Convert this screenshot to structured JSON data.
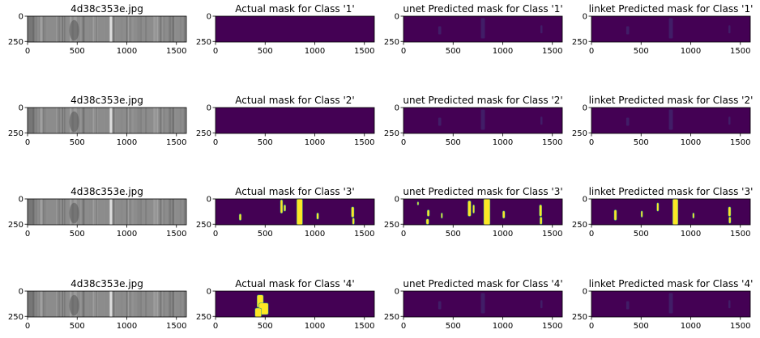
{
  "figure": {
    "rows": [
      {
        "panels": [
          {
            "title": "4d38c353e.jpg",
            "kind": "photo"
          },
          {
            "title": "Actual mask for Class '1'",
            "kind": "mask",
            "blobs": []
          },
          {
            "title": "unet Predicted mask for Class '1'",
            "kind": "mask",
            "blobs": "faint"
          },
          {
            "title": "linket Predicted mask for Class '1'",
            "kind": "mask",
            "blobs": "faint"
          }
        ]
      },
      {
        "panels": [
          {
            "title": "4d38c353e.jpg",
            "kind": "photo"
          },
          {
            "title": "Actual mask for Class '2'",
            "kind": "mask",
            "blobs": []
          },
          {
            "title": "unet Predicted mask for Class '2'",
            "kind": "mask",
            "blobs": "faint"
          },
          {
            "title": "linket Predicted mask for Class '2'",
            "kind": "mask",
            "blobs": "faint"
          }
        ]
      },
      {
        "panels": [
          {
            "title": "4d38c353e.jpg",
            "kind": "photo"
          },
          {
            "title": "Actual mask for Class '3'",
            "kind": "mask",
            "blobs": "class3_actual"
          },
          {
            "title": "unet Predicted mask for Class '3'",
            "kind": "mask",
            "blobs": "class3_unet"
          },
          {
            "title": "linket Predicted mask for Class '3'",
            "kind": "mask",
            "blobs": "class3_linket"
          }
        ]
      },
      {
        "panels": [
          {
            "title": "4d38c353e.jpg",
            "kind": "photo"
          },
          {
            "title": "Actual mask for Class '4'",
            "kind": "mask",
            "blobs": "class4_actual"
          },
          {
            "title": "unet Predicted mask for Class '4'",
            "kind": "mask",
            "blobs": "faint"
          },
          {
            "title": "linket Predicted mask for Class '4'",
            "kind": "mask",
            "blobs": "faint"
          }
        ]
      }
    ],
    "x_ticks": [
      0,
      500,
      1000,
      1500
    ],
    "y_ticks": [
      0,
      250
    ],
    "image_width": 1600,
    "image_height": 256,
    "colors": {
      "mask_background": "#440154",
      "mask_foreground": "#fde725",
      "mask_mid": "#21918c",
      "mask_faint": "#3b528b",
      "photo_base": "#8c8c8c"
    },
    "blob_sets": {
      "class3_actual": [
        {
          "x": 240,
          "y": 150,
          "w": 18,
          "h": 60
        },
        {
          "x": 655,
          "y": 10,
          "w": 20,
          "h": 130
        },
        {
          "x": 690,
          "y": 60,
          "w": 16,
          "h": 60
        },
        {
          "x": 820,
          "y": 0,
          "w": 55,
          "h": 256
        },
        {
          "x": 1020,
          "y": 140,
          "w": 18,
          "h": 60
        },
        {
          "x": 1370,
          "y": 80,
          "w": 24,
          "h": 100
        },
        {
          "x": 1380,
          "y": 190,
          "w": 18,
          "h": 60
        }
      ],
      "class3_unet": [
        {
          "x": 140,
          "y": 30,
          "w": 12,
          "h": 30
        },
        {
          "x": 240,
          "y": 110,
          "w": 20,
          "h": 60
        },
        {
          "x": 230,
          "y": 200,
          "w": 24,
          "h": 50
        },
        {
          "x": 380,
          "y": 140,
          "w": 12,
          "h": 50
        },
        {
          "x": 650,
          "y": 20,
          "w": 28,
          "h": 150
        },
        {
          "x": 700,
          "y": 60,
          "w": 14,
          "h": 80
        },
        {
          "x": 810,
          "y": 0,
          "w": 60,
          "h": 256
        },
        {
          "x": 1000,
          "y": 120,
          "w": 20,
          "h": 70
        },
        {
          "x": 1370,
          "y": 60,
          "w": 22,
          "h": 110
        },
        {
          "x": 1375,
          "y": 180,
          "w": 20,
          "h": 70
        }
      ],
      "class3_linket": [
        {
          "x": 230,
          "y": 110,
          "w": 22,
          "h": 100
        },
        {
          "x": 500,
          "y": 120,
          "w": 14,
          "h": 60
        },
        {
          "x": 660,
          "y": 40,
          "w": 16,
          "h": 80
        },
        {
          "x": 820,
          "y": 0,
          "w": 50,
          "h": 256
        },
        {
          "x": 1020,
          "y": 140,
          "w": 14,
          "h": 50
        },
        {
          "x": 1380,
          "y": 80,
          "w": 22,
          "h": 90
        },
        {
          "x": 1385,
          "y": 180,
          "w": 18,
          "h": 60
        }
      ],
      "class4_actual": [
        {
          "x": 420,
          "y": 40,
          "w": 60,
          "h": 120
        },
        {
          "x": 440,
          "y": 120,
          "w": 90,
          "h": 110
        },
        {
          "x": 400,
          "y": 170,
          "w": 60,
          "h": 86
        }
      ],
      "faint": [
        {
          "x": 350,
          "y": 100,
          "w": 30,
          "h": 80
        },
        {
          "x": 780,
          "y": 20,
          "w": 40,
          "h": 200
        },
        {
          "x": 1380,
          "y": 90,
          "w": 20,
          "h": 80
        }
      ]
    }
  }
}
